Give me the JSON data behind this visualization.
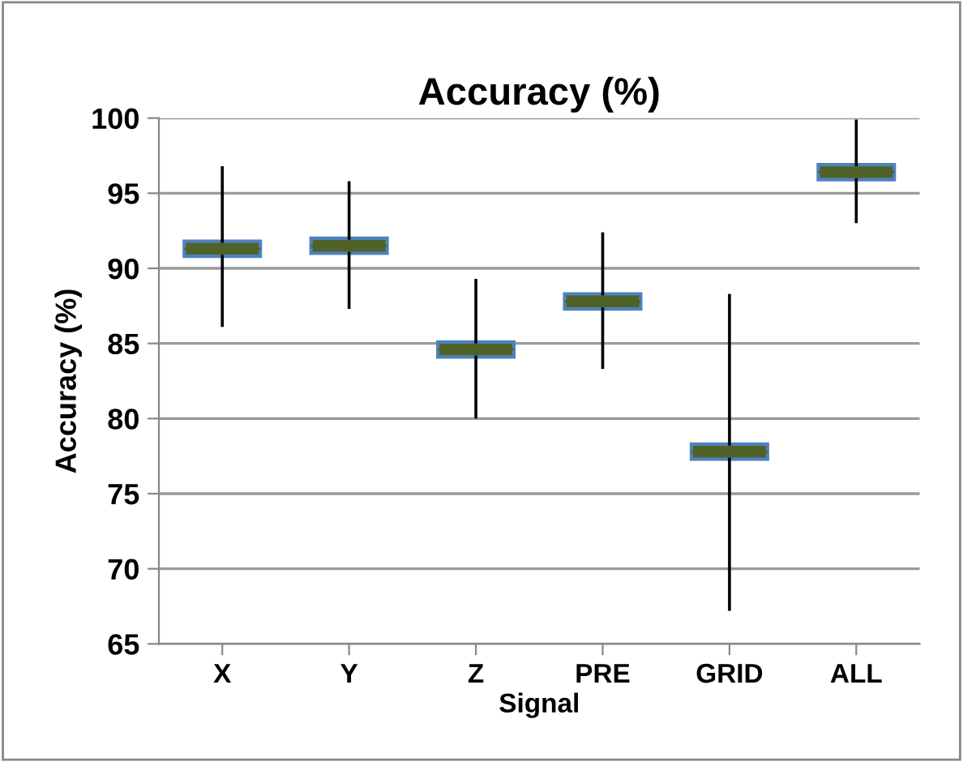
{
  "chart_data": {
    "type": "box",
    "title": "Accuracy (%)",
    "xlabel": "Signal",
    "ylabel": "Accuracy (%)",
    "categories": [
      "X",
      "Y",
      "Z",
      "PRE",
      "GRID",
      "ALL"
    ],
    "series": [
      {
        "color": "#4f6228",
        "boxes": [
          {
            "low": 86.2,
            "q1": 90.8,
            "median": 91.3,
            "q3": 91.8,
            "high": 96.7
          },
          {
            "low": 87.4,
            "q1": 91.0,
            "median": 91.5,
            "q3": 92.0,
            "high": 95.7
          },
          {
            "low": 80.1,
            "q1": 84.1,
            "median": 84.6,
            "q3": 85.1,
            "high": 89.2
          },
          {
            "low": 83.4,
            "q1": 87.3,
            "median": 87.8,
            "q3": 88.3,
            "high": 92.3
          },
          {
            "low": 67.3,
            "q1": 77.3,
            "median": 77.8,
            "q3": 78.3,
            "high": 88.2
          },
          {
            "low": 93.1,
            "q1": 95.9,
            "median": 96.4,
            "q3": 96.9,
            "high": 99.8
          }
        ]
      }
    ],
    "ylim": [
      65,
      100
    ],
    "yticks": [
      65,
      70,
      75,
      80,
      85,
      90,
      95,
      100
    ],
    "grid": "y"
  }
}
